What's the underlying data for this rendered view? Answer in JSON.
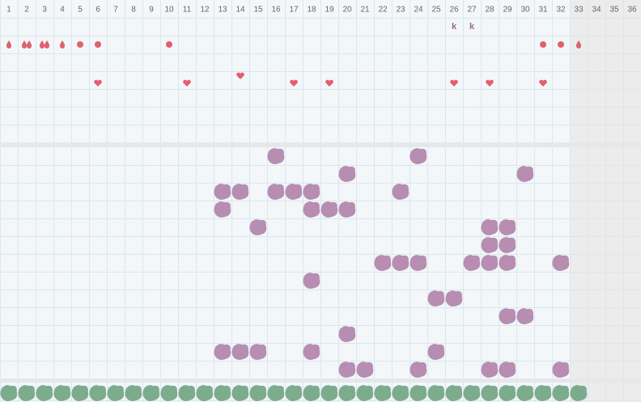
{
  "header": {
    "days": [
      "1",
      "2",
      "3",
      "4",
      "5",
      "6",
      "7",
      "8",
      "9",
      "10",
      "11",
      "12",
      "13",
      "14",
      "15",
      "16",
      "17",
      "18",
      "19",
      "20",
      "21",
      "22",
      "23",
      "24",
      "25",
      "26",
      "27",
      "28",
      "29",
      "30",
      "31",
      "32",
      "33",
      "34",
      "35",
      "36"
    ]
  },
  "top": {
    "rows": [
      {
        "items": [
          {
            "day": 26,
            "label": "k"
          },
          {
            "day": 27,
            "label": "k"
          }
        ]
      },
      {
        "items": [
          {
            "day": 1,
            "kind": "drop"
          },
          {
            "day": 2,
            "kind": "drop-pair"
          },
          {
            "day": 3,
            "kind": "drop-pair"
          },
          {
            "day": 4,
            "kind": "drop"
          },
          {
            "day": 5,
            "kind": "dot"
          },
          {
            "day": 6,
            "kind": "dot"
          },
          {
            "day": 10,
            "kind": "dot"
          },
          {
            "day": 31,
            "kind": "dot"
          },
          {
            "day": 32,
            "kind": "dot"
          },
          {
            "day": 33,
            "kind": "drop"
          }
        ]
      },
      {
        "items": [
          {
            "day": 14,
            "kind": "heart"
          }
        ]
      },
      {
        "items": [
          {
            "day": 6,
            "kind": "heart"
          },
          {
            "day": 11,
            "kind": "heart"
          },
          {
            "day": 17,
            "kind": "heart"
          },
          {
            "day": 19,
            "kind": "heart"
          },
          {
            "day": 26,
            "kind": "heart"
          },
          {
            "day": 28,
            "kind": "heart"
          },
          {
            "day": 31,
            "kind": "heart"
          }
        ]
      }
    ]
  },
  "middle": {
    "rows": [
      [
        16,
        24
      ],
      [
        20,
        30
      ],
      [
        13,
        14,
        16,
        17,
        18,
        23
      ],
      [
        13,
        18,
        19,
        20
      ],
      [
        15,
        28,
        29
      ],
      [
        28,
        29
      ],
      [
        22,
        23,
        24,
        27,
        28,
        29,
        32
      ],
      [
        18
      ],
      [
        25,
        26
      ],
      [
        29,
        30
      ],
      [
        20
      ],
      [
        13,
        14,
        15,
        18,
        25
      ],
      [
        20,
        21,
        24,
        28,
        29,
        32
      ]
    ]
  },
  "bottom": {
    "days": [
      1,
      2,
      3,
      4,
      5,
      6,
      7,
      8,
      9,
      10,
      11,
      12,
      13,
      14,
      15,
      16,
      17,
      18,
      19,
      20,
      21,
      22,
      23,
      24,
      25,
      26,
      27,
      28,
      29,
      30,
      31,
      32,
      33
    ]
  }
}
